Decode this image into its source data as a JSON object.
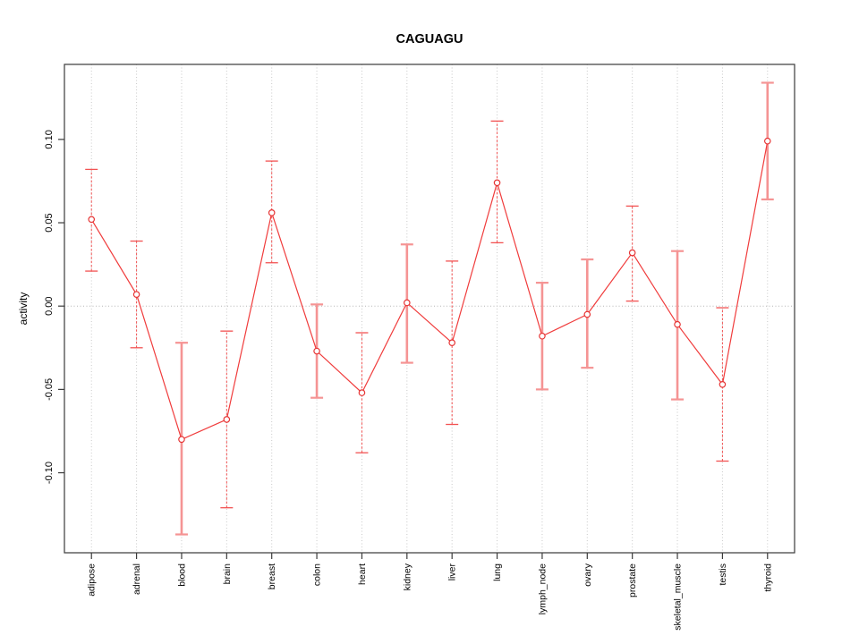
{
  "figure": {
    "title": "CAGUAGU",
    "background": "#ffffff"
  },
  "chart_data": {
    "type": "line",
    "subtype": "points-with-error-bars",
    "title": "CAGUAGU",
    "xlabel": "",
    "ylabel": "activity",
    "legend": "none",
    "grid": "vertical dotted line per category; dotted horizontal line at y=0",
    "categories": [
      "adipose",
      "adrenal",
      "blood",
      "brain",
      "breast",
      "colon",
      "heart",
      "kidney",
      "liver",
      "lung",
      "lymph_node",
      "ovary",
      "prostate",
      "skeletal_muscle",
      "testis",
      "thyroid"
    ],
    "values": [
      0.052,
      0.007,
      -0.08,
      -0.068,
      0.056,
      -0.027,
      -0.052,
      0.002,
      -0.022,
      0.074,
      -0.018,
      -0.005,
      0.032,
      -0.011,
      -0.047,
      0.099
    ],
    "error_lower": [
      0.021,
      -0.025,
      -0.137,
      -0.121,
      0.026,
      -0.055,
      -0.088,
      -0.034,
      -0.071,
      0.038,
      -0.05,
      -0.037,
      0.003,
      -0.056,
      -0.093,
      0.064
    ],
    "error_upper": [
      0.082,
      0.039,
      -0.022,
      -0.015,
      0.087,
      0.001,
      -0.016,
      0.037,
      0.027,
      0.111,
      0.014,
      0.028,
      0.06,
      0.033,
      -0.001,
      0.134
    ],
    "error_bar_style": [
      "thin",
      "thin",
      "thick",
      "thin",
      "thin",
      "thick",
      "thin",
      "thick",
      "thin",
      "thin",
      "thick",
      "thick",
      "thin",
      "thick",
      "thin",
      "thick"
    ],
    "y_ticks": [
      "0.10",
      "0.05",
      "0.00",
      "-0.05",
      "-0.10"
    ],
    "ylim": [
      -0.148,
      0.145
    ],
    "colors": {
      "line": "#f03c3c",
      "point_stroke": "#e63535",
      "errorbar_thin": "#f25252",
      "errorbar_thick": "#f59494",
      "grid": "#c9c9c9",
      "zero_line": "#b5b5b5",
      "frame": "#3a3a3a",
      "text": "#000000"
    }
  }
}
